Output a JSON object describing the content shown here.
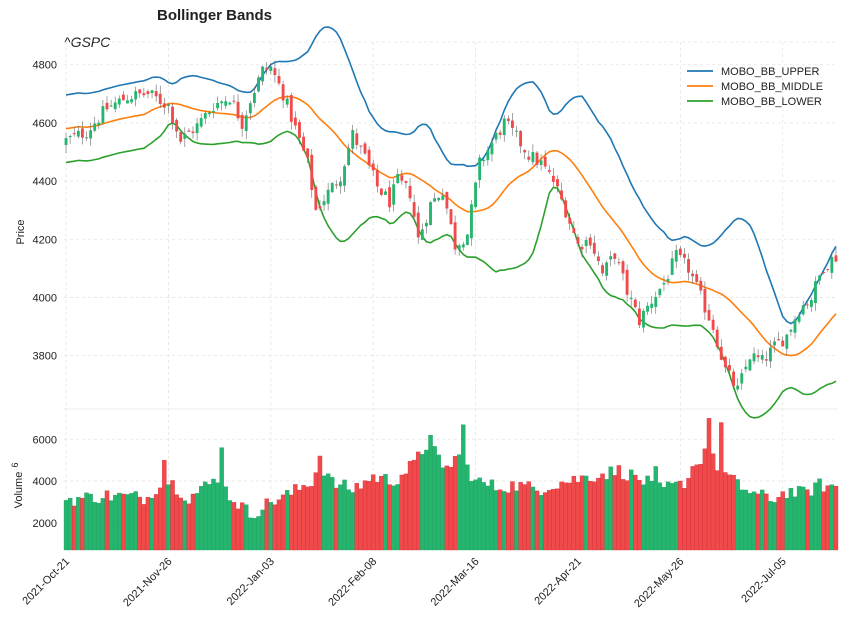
{
  "title": "Bollinger Bands",
  "ticker": "^GSPC",
  "colors": {
    "upper": "#1f77b4",
    "middle": "#ff7f0e",
    "lower": "#2ca02c",
    "up": "#26b56e",
    "down": "#f04a4a",
    "grid": "#e3e3e3"
  },
  "chart_data": {
    "type": "candlestick",
    "ylabel": "Price",
    "price_ylim": [
      3620,
      4830
    ],
    "price_yticks": [
      3800,
      4000,
      4200,
      4400,
      4600,
      4800
    ],
    "volume_ylabel": "Volume",
    "volume_exponent": "6",
    "volume_ylim": [
      700,
      7400
    ],
    "volume_yticks": [
      2000,
      4000,
      6000
    ],
    "x_ticks": [
      {
        "index": 0,
        "label": "2021-Oct-21"
      },
      {
        "index": 25,
        "label": "2021-Nov-26"
      },
      {
        "index": 50,
        "label": "2022-Jan-03"
      },
      {
        "index": 75,
        "label": "2022-Feb-08"
      },
      {
        "index": 100,
        "label": "2022-Mar-16"
      },
      {
        "index": 125,
        "label": "2022-Apr-21"
      },
      {
        "index": 150,
        "label": "2022-May-26"
      },
      {
        "index": 175,
        "label": "2022-Jul-05"
      }
    ],
    "legend": [
      "MOBO_BB_UPPER",
      "MOBO_BB_MIDDLE",
      "MOBO_BB_LOWER"
    ],
    "legend_position": "top-right",
    "grid": true,
    "close_anchors": [
      [
        0,
        4540
      ],
      [
        5,
        4570
      ],
      [
        10,
        4650
      ],
      [
        15,
        4690
      ],
      [
        20,
        4700
      ],
      [
        25,
        4660
      ],
      [
        28,
        4540
      ],
      [
        32,
        4590
      ],
      [
        36,
        4660
      ],
      [
        40,
        4690
      ],
      [
        43,
        4600
      ],
      [
        45,
        4680
      ],
      [
        48,
        4780
      ],
      [
        50,
        4790
      ],
      [
        53,
        4700
      ],
      [
        56,
        4580
      ],
      [
        59,
        4460
      ],
      [
        61,
        4300
      ],
      [
        64,
        4360
      ],
      [
        67,
        4420
      ],
      [
        70,
        4560
      ],
      [
        73,
        4480
      ],
      [
        76,
        4380
      ],
      [
        79,
        4330
      ],
      [
        81,
        4400
      ],
      [
        84,
        4360
      ],
      [
        86,
        4200
      ],
      [
        89,
        4320
      ],
      [
        92,
        4370
      ],
      [
        95,
        4180
      ],
      [
        98,
        4220
      ],
      [
        101,
        4460
      ],
      [
        104,
        4530
      ],
      [
        107,
        4600
      ],
      [
        110,
        4550
      ],
      [
        113,
        4490
      ],
      [
        116,
        4460
      ],
      [
        119,
        4400
      ],
      [
        122,
        4300
      ],
      [
        125,
        4180
      ],
      [
        128,
        4200
      ],
      [
        131,
        4080
      ],
      [
        134,
        4150
      ],
      [
        137,
        4020
      ],
      [
        140,
        3920
      ],
      [
        143,
        3990
      ],
      [
        146,
        4050
      ],
      [
        149,
        4140
      ],
      [
        152,
        4100
      ],
      [
        155,
        4000
      ],
      [
        158,
        3900
      ],
      [
        161,
        3750
      ],
      [
        164,
        3680
      ],
      [
        167,
        3800
      ],
      [
        170,
        3780
      ],
      [
        173,
        3830
      ],
      [
        176,
        3870
      ],
      [
        179,
        3960
      ],
      [
        182,
        4000
      ],
      [
        185,
        4110
      ],
      [
        188,
        4140
      ]
    ],
    "volume_anchors": [
      [
        0,
        3100
      ],
      [
        10,
        3300
      ],
      [
        20,
        3200
      ],
      [
        24,
        4200
      ],
      [
        30,
        3200
      ],
      [
        37,
        4100
      ],
      [
        40,
        3300
      ],
      [
        45,
        2400
      ],
      [
        50,
        3000
      ],
      [
        55,
        3400
      ],
      [
        60,
        4000
      ],
      [
        62,
        4900
      ],
      [
        65,
        3900
      ],
      [
        70,
        3600
      ],
      [
        75,
        4200
      ],
      [
        80,
        4000
      ],
      [
        85,
        4800
      ],
      [
        89,
        6000
      ],
      [
        92,
        4400
      ],
      [
        96,
        5300
      ],
      [
        100,
        4000
      ],
      [
        105,
        3700
      ],
      [
        110,
        3800
      ],
      [
        115,
        3600
      ],
      [
        120,
        3900
      ],
      [
        125,
        4100
      ],
      [
        130,
        4300
      ],
      [
        135,
        4500
      ],
      [
        140,
        4100
      ],
      [
        145,
        3600
      ],
      [
        150,
        3800
      ],
      [
        153,
        4300
      ],
      [
        156,
        5500
      ],
      [
        160,
        4500
      ],
      [
        164,
        3800
      ],
      [
        168,
        3400
      ],
      [
        172,
        3100
      ],
      [
        176,
        3500
      ],
      [
        180,
        3400
      ],
      [
        184,
        3800
      ],
      [
        188,
        3700
      ]
    ],
    "volume_spikes": [
      [
        24,
        5000
      ],
      [
        38,
        5600
      ],
      [
        62,
        5200
      ],
      [
        89,
        6200
      ],
      [
        97,
        6700
      ],
      [
        144,
        4700
      ],
      [
        153,
        4700
      ],
      [
        157,
        7000
      ],
      [
        160,
        6800
      ]
    ],
    "num_bars": 189,
    "bb_window": 20,
    "bb_k": 2
  }
}
